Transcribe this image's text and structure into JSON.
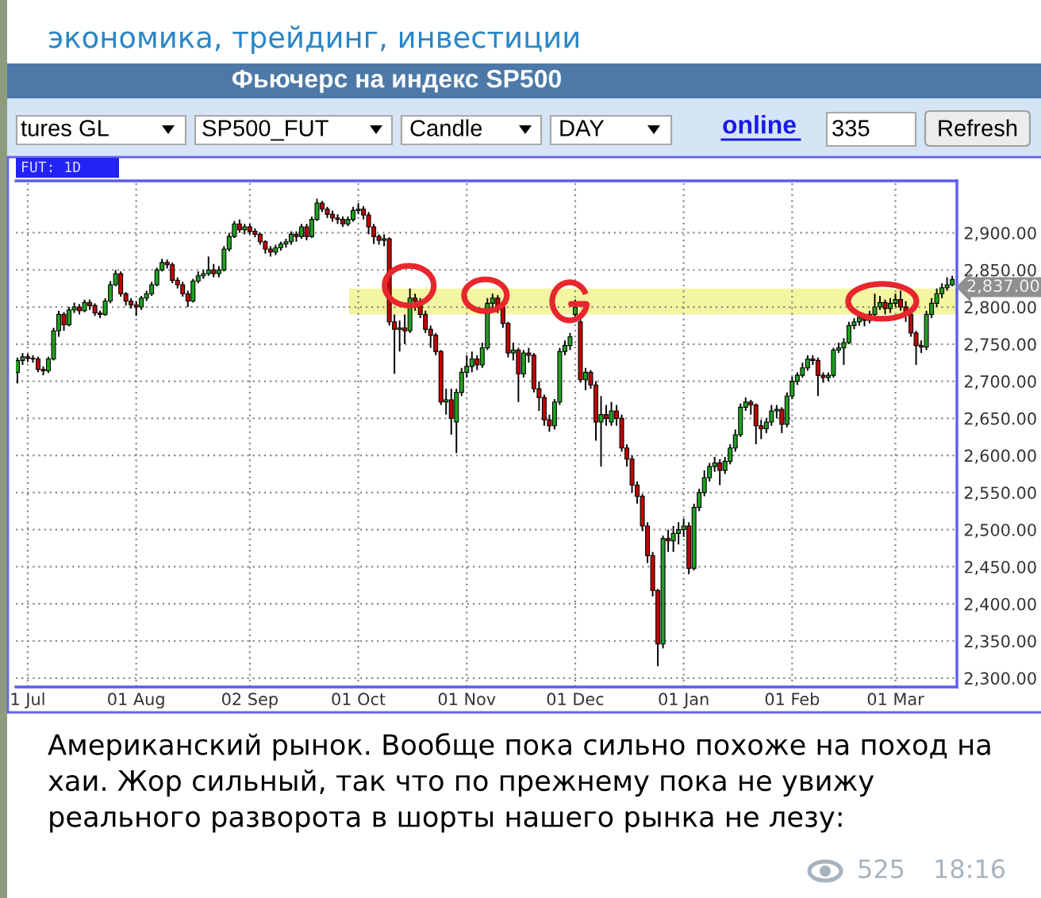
{
  "chart_data": {
    "type": "candlestick",
    "title": "Фьючерс на индекс SP500",
    "categories": [
      null,
      null,
      "1 Jul",
      null,
      null,
      null,
      null,
      null,
      null,
      null,
      null,
      null,
      null,
      null,
      null,
      null,
      null,
      null,
      null,
      null,
      null,
      null,
      null,
      "01 Aug",
      null,
      null,
      null,
      null,
      null,
      null,
      null,
      null,
      null,
      null,
      null,
      null,
      null,
      null,
      null,
      null,
      null,
      null,
      null,
      null,
      null,
      "02 Sep",
      null,
      null,
      null,
      null,
      null,
      null,
      null,
      null,
      null,
      null,
      null,
      null,
      null,
      null,
      null,
      null,
      null,
      null,
      null,
      null,
      "01 Oct",
      null,
      null,
      null,
      null,
      null,
      null,
      null,
      null,
      null,
      null,
      null,
      null,
      null,
      null,
      null,
      null,
      null,
      null,
      null,
      null,
      "01 Nov",
      null,
      null,
      null,
      null,
      null,
      null,
      null,
      null,
      null,
      null,
      null,
      null,
      null,
      null,
      null,
      null,
      null,
      null,
      null,
      null,
      "01 Dec",
      null,
      null,
      null,
      null,
      null,
      null,
      null,
      null,
      null,
      null,
      null,
      null,
      null,
      null,
      null,
      null,
      null,
      null,
      null,
      null,
      "01 Jan",
      null,
      null,
      null,
      null,
      null,
      null,
      null,
      null,
      null,
      null,
      null,
      null,
      null,
      null,
      null,
      null,
      null,
      null,
      null,
      null,
      "01 Feb",
      null,
      null,
      null,
      null,
      null,
      null,
      null,
      null,
      null,
      null,
      null,
      null,
      null,
      null,
      null,
      null,
      null,
      null,
      null,
      "01 Mar",
      null,
      null,
      null,
      null,
      null,
      null,
      null,
      null,
      null,
      null,
      null
    ],
    "ohlc": [
      [
        2712,
        2732,
        2697,
        2728
      ],
      [
        2728,
        2738,
        2722,
        2733
      ],
      [
        2733,
        2737,
        2726,
        2731
      ],
      [
        2731,
        2735,
        2725,
        2730
      ],
      [
        2730,
        2733,
        2712,
        2716
      ],
      [
        2716,
        2720,
        2708,
        2714
      ],
      [
        2714,
        2733,
        2711,
        2730
      ],
      [
        2730,
        2772,
        2728,
        2768
      ],
      [
        2768,
        2795,
        2760,
        2790
      ],
      [
        2790,
        2793,
        2768,
        2776
      ],
      [
        2776,
        2800,
        2774,
        2796
      ],
      [
        2796,
        2806,
        2792,
        2800
      ],
      [
        2800,
        2804,
        2790,
        2795
      ],
      [
        2795,
        2810,
        2793,
        2806
      ],
      [
        2806,
        2810,
        2796,
        2802
      ],
      [
        2802,
        2805,
        2788,
        2792
      ],
      [
        2792,
        2795,
        2785,
        2790
      ],
      [
        2790,
        2812,
        2788,
        2808
      ],
      [
        2808,
        2835,
        2805,
        2830
      ],
      [
        2830,
        2850,
        2828,
        2845
      ],
      [
        2845,
        2848,
        2814,
        2818
      ],
      [
        2818,
        2820,
        2802,
        2808
      ],
      [
        2808,
        2812,
        2798,
        2803
      ],
      [
        2803,
        2808,
        2788,
        2800
      ],
      [
        2800,
        2815,
        2796,
        2812
      ],
      [
        2812,
        2822,
        2808,
        2818
      ],
      [
        2818,
        2834,
        2815,
        2830
      ],
      [
        2830,
        2853,
        2828,
        2850
      ],
      [
        2850,
        2865,
        2848,
        2860
      ],
      [
        2860,
        2864,
        2852,
        2857
      ],
      [
        2857,
        2860,
        2832,
        2836
      ],
      [
        2836,
        2840,
        2825,
        2830
      ],
      [
        2830,
        2834,
        2814,
        2818
      ],
      [
        2818,
        2822,
        2800,
        2808
      ],
      [
        2808,
        2838,
        2806,
        2835
      ],
      [
        2835,
        2848,
        2832,
        2842
      ],
      [
        2842,
        2850,
        2838,
        2845
      ],
      [
        2845,
        2868,
        2842,
        2850
      ],
      [
        2850,
        2858,
        2840,
        2845
      ],
      [
        2845,
        2855,
        2840,
        2850
      ],
      [
        2850,
        2882,
        2848,
        2878
      ],
      [
        2878,
        2900,
        2875,
        2895
      ],
      [
        2895,
        2916,
        2893,
        2912
      ],
      [
        2912,
        2918,
        2900,
        2904
      ],
      [
        2904,
        2912,
        2898,
        2908
      ],
      [
        2908,
        2912,
        2898,
        2902
      ],
      [
        2902,
        2906,
        2894,
        2898
      ],
      [
        2898,
        2900,
        2884,
        2888
      ],
      [
        2888,
        2890,
        2872,
        2878
      ],
      [
        2878,
        2882,
        2868,
        2874
      ],
      [
        2874,
        2884,
        2870,
        2880
      ],
      [
        2880,
        2888,
        2876,
        2885
      ],
      [
        2885,
        2892,
        2880,
        2888
      ],
      [
        2888,
        2902,
        2884,
        2898
      ],
      [
        2898,
        2902,
        2888,
        2895
      ],
      [
        2895,
        2912,
        2892,
        2908
      ],
      [
        2908,
        2912,
        2890,
        2895
      ],
      [
        2895,
        2922,
        2893,
        2918
      ],
      [
        2918,
        2946,
        2916,
        2940
      ],
      [
        2940,
        2943,
        2928,
        2932
      ],
      [
        2932,
        2935,
        2920,
        2925
      ],
      [
        2925,
        2930,
        2915,
        2920
      ],
      [
        2920,
        2925,
        2912,
        2918
      ],
      [
        2918,
        2922,
        2908,
        2912
      ],
      [
        2912,
        2922,
        2909,
        2918
      ],
      [
        2918,
        2935,
        2915,
        2930
      ],
      [
        2930,
        2940,
        2925,
        2932
      ],
      [
        2932,
        2936,
        2918,
        2924
      ],
      [
        2924,
        2928,
        2898,
        2908
      ],
      [
        2908,
        2912,
        2885,
        2895
      ],
      [
        2895,
        2898,
        2884,
        2890
      ],
      [
        2890,
        2898,
        2882,
        2892
      ],
      [
        2892,
        2894,
        2775,
        2780
      ],
      [
        2780,
        2790,
        2710,
        2770
      ],
      [
        2770,
        2782,
        2740,
        2772
      ],
      [
        2772,
        2790,
        2750,
        2768
      ],
      [
        2768,
        2825,
        2765,
        2812
      ],
      [
        2812,
        2818,
        2795,
        2808
      ],
      [
        2808,
        2812,
        2785,
        2790
      ],
      [
        2790,
        2795,
        2765,
        2770
      ],
      [
        2770,
        2775,
        2745,
        2762
      ],
      [
        2762,
        2765,
        2735,
        2740
      ],
      [
        2740,
        2742,
        2668,
        2672
      ],
      [
        2672,
        2690,
        2655,
        2675
      ],
      [
        2675,
        2690,
        2628,
        2650
      ],
      [
        2645,
        2690,
        2603,
        2685
      ],
      [
        2685,
        2718,
        2680,
        2712
      ],
      [
        2712,
        2735,
        2705,
        2720
      ],
      [
        2720,
        2740,
        2712,
        2730
      ],
      [
        2730,
        2735,
        2715,
        2722
      ],
      [
        2722,
        2752,
        2718,
        2745
      ],
      [
        2745,
        2812,
        2742,
        2805
      ],
      [
        2805,
        2818,
        2798,
        2812
      ],
      [
        2812,
        2816,
        2792,
        2800
      ],
      [
        2800,
        2802,
        2772,
        2778
      ],
      [
        2778,
        2780,
        2732,
        2738
      ],
      [
        2738,
        2752,
        2728,
        2742
      ],
      [
        2742,
        2745,
        2672,
        2710
      ],
      [
        2710,
        2742,
        2705,
        2738
      ],
      [
        2738,
        2745,
        2725,
        2735
      ],
      [
        2735,
        2738,
        2685,
        2690
      ],
      [
        2690,
        2700,
        2660,
        2678
      ],
      [
        2678,
        2682,
        2640,
        2648
      ],
      [
        2648,
        2655,
        2632,
        2640
      ],
      [
        2640,
        2676,
        2635,
        2672
      ],
      [
        2672,
        2745,
        2668,
        2740
      ],
      [
        2740,
        2755,
        2735,
        2748
      ],
      [
        2748,
        2765,
        2742,
        2760
      ],
      [
        2790,
        2810,
        2780,
        2800
      ],
      [
        2780,
        2785,
        2698,
        2702
      ],
      [
        2702,
        2718,
        2688,
        2712
      ],
      [
        2712,
        2715,
        2690,
        2695
      ],
      [
        2695,
        2700,
        2620,
        2645
      ],
      [
        2645,
        2680,
        2585,
        2655
      ],
      [
        2655,
        2668,
        2640,
        2650
      ],
      [
        2645,
        2672,
        2640,
        2660
      ],
      [
        2660,
        2668,
        2640,
        2650
      ],
      [
        2650,
        2655,
        2605,
        2610
      ],
      [
        2610,
        2615,
        2585,
        2595
      ],
      [
        2595,
        2600,
        2550,
        2560
      ],
      [
        2560,
        2565,
        2535,
        2545
      ],
      [
        2545,
        2548,
        2498,
        2505
      ],
      [
        2505,
        2510,
        2455,
        2465
      ],
      [
        2465,
        2470,
        2410,
        2418
      ],
      [
        2418,
        2420,
        2316,
        2346
      ],
      [
        2346,
        2492,
        2340,
        2488
      ],
      [
        2488,
        2500,
        2470,
        2485
      ],
      [
        2485,
        2505,
        2470,
        2495
      ],
      [
        2495,
        2510,
        2480,
        2500
      ],
      [
        2500,
        2515,
        2490,
        2505
      ],
      [
        2505,
        2510,
        2440,
        2448
      ],
      [
        2448,
        2535,
        2445,
        2530
      ],
      [
        2530,
        2555,
        2525,
        2550
      ],
      [
        2550,
        2580,
        2545,
        2570
      ],
      [
        2570,
        2590,
        2565,
        2585
      ],
      [
        2585,
        2598,
        2578,
        2590
      ],
      [
        2590,
        2595,
        2560,
        2580
      ],
      [
        2580,
        2598,
        2575,
        2592
      ],
      [
        2592,
        2615,
        2588,
        2610
      ],
      [
        2610,
        2635,
        2605,
        2628
      ],
      [
        2628,
        2670,
        2625,
        2665
      ],
      [
        2665,
        2678,
        2660,
        2672
      ],
      [
        2672,
        2675,
        2655,
        2668
      ],
      [
        2668,
        2670,
        2615,
        2640
      ],
      [
        2640,
        2648,
        2622,
        2636
      ],
      [
        2636,
        2650,
        2630,
        2645
      ],
      [
        2645,
        2668,
        2640,
        2660
      ],
      [
        2660,
        2668,
        2650,
        2662
      ],
      [
        2662,
        2665,
        2630,
        2642
      ],
      [
        2642,
        2685,
        2638,
        2680
      ],
      [
        2680,
        2706,
        2676,
        2700
      ],
      [
        2700,
        2712,
        2695,
        2708
      ],
      [
        2708,
        2725,
        2705,
        2718
      ],
      [
        2718,
        2735,
        2714,
        2730
      ],
      [
        2730,
        2735,
        2722,
        2728
      ],
      [
        2728,
        2732,
        2680,
        2708
      ],
      [
        2708,
        2712,
        2698,
        2705
      ],
      [
        2705,
        2712,
        2700,
        2708
      ],
      [
        2708,
        2745,
        2705,
        2742
      ],
      [
        2742,
        2752,
        2738,
        2745
      ],
      [
        2745,
        2758,
        2722,
        2752
      ],
      [
        2752,
        2780,
        2750,
        2775
      ],
      [
        2775,
        2785,
        2770,
        2780
      ],
      [
        2780,
        2792,
        2775,
        2786
      ],
      [
        2786,
        2790,
        2774,
        2782
      ],
      [
        2782,
        2795,
        2778,
        2790
      ],
      [
        2790,
        2818,
        2785,
        2800
      ],
      [
        2800,
        2815,
        2796,
        2806
      ],
      [
        2806,
        2810,
        2790,
        2798
      ],
      [
        2798,
        2812,
        2792,
        2805
      ],
      [
        2805,
        2818,
        2800,
        2810
      ],
      [
        2810,
        2822,
        2795,
        2800
      ],
      [
        2800,
        2808,
        2780,
        2790
      ],
      [
        2790,
        2795,
        2760,
        2765
      ],
      [
        2765,
        2768,
        2722,
        2748
      ],
      [
        2748,
        2755,
        2738,
        2746
      ],
      [
        2746,
        2795,
        2742,
        2790
      ],
      [
        2790,
        2812,
        2785,
        2805
      ],
      [
        2805,
        2825,
        2800,
        2818
      ],
      [
        2818,
        2832,
        2812,
        2826
      ],
      [
        2826,
        2840,
        2822,
        2830
      ],
      [
        2830,
        2842,
        2828,
        2837
      ]
    ],
    "ylim": [
      2288,
      2970
    ],
    "yticks": [
      {
        "value": 2300,
        "label": "2,300.00"
      },
      {
        "value": 2350,
        "label": "2,350.00"
      },
      {
        "value": 2400,
        "label": "2,400.00"
      },
      {
        "value": 2450,
        "label": "2,450.00"
      },
      {
        "value": 2500,
        "label": "2,500.00"
      },
      {
        "value": 2550,
        "label": "2,550.00"
      },
      {
        "value": 2600,
        "label": "2,600.00"
      },
      {
        "value": 2650,
        "label": "2,650.00"
      },
      {
        "value": 2700,
        "label": "2,700.00"
      },
      {
        "value": 2750,
        "label": "2,750.00"
      },
      {
        "value": 2800,
        "label": "2,800.00"
      },
      {
        "value": 2850,
        "label": "2,850.00"
      },
      {
        "value": 2900,
        "label": "2,900.00"
      }
    ],
    "grid": true,
    "bands": [
      {
        "axis": "y",
        "from": 2790,
        "to": 2825,
        "color": "#f3f5a0"
      }
    ],
    "annotations": [
      "экономика, трейдинг, инвестиции",
      "tures GL",
      "SP500_FUT",
      "Candle",
      "DAY",
      "online",
      "335",
      "Refresh",
      "FUT: 1D",
      "2,837.00",
      "Американский рынок. Вообще пока сильно похоже на поход на\nхаи. Жор сильный, так что по прежнему пока не увижу\nреального разворота в шорты нашего рынка не лезу:",
      "525",
      "18:16"
    ]
  }
}
